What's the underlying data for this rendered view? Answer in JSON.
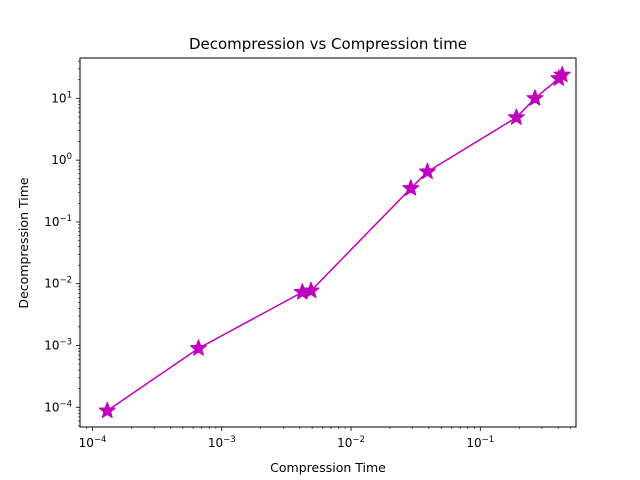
{
  "chart_data": {
    "type": "line",
    "title": "Decompression vs Compression time",
    "xlabel": "Compression Time",
    "ylabel": "Decompression Time",
    "xscale": "log",
    "yscale": "log",
    "xlim": [
      8e-05,
      0.55
    ],
    "ylim": [
      4.8e-05,
      45
    ],
    "grid": false,
    "x_ticks": [
      {
        "value": 0.0001,
        "mantissa": "10",
        "exp": "−4"
      },
      {
        "value": 0.001,
        "mantissa": "10",
        "exp": "−3"
      },
      {
        "value": 0.01,
        "mantissa": "10",
        "exp": "−2"
      },
      {
        "value": 0.1,
        "mantissa": "10",
        "exp": "−1"
      }
    ],
    "y_ticks": [
      {
        "value": 0.0001,
        "mantissa": "10",
        "exp": "−4"
      },
      {
        "value": 0.001,
        "mantissa": "10",
        "exp": "−3"
      },
      {
        "value": 0.01,
        "mantissa": "10",
        "exp": "−2"
      },
      {
        "value": 0.1,
        "mantissa": "10",
        "exp": "−1"
      },
      {
        "value": 1,
        "mantissa": "10",
        "exp": "0"
      },
      {
        "value": 10,
        "mantissa": "10",
        "exp": "1"
      }
    ],
    "series": [
      {
        "color": "#bf00bf",
        "marker": "star",
        "x": [
          0.00013,
          0.00066,
          0.0042,
          0.0049,
          0.029,
          0.039,
          0.19,
          0.265,
          0.405,
          0.43
        ],
        "y": [
          8.8e-05,
          0.0009,
          0.0073,
          0.0077,
          0.35,
          0.65,
          4.9,
          10.0,
          21.0,
          24.0
        ]
      }
    ]
  }
}
